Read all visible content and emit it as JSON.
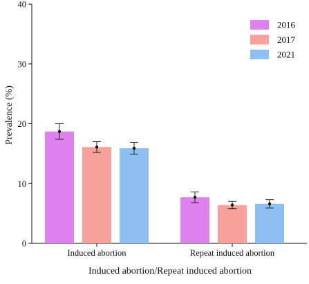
{
  "chart_data": {
    "type": "bar",
    "xlabel": "Induced abortion/Repeat induced abortion",
    "ylabel": "Prevalence (%)",
    "ylim": [
      0,
      40
    ],
    "yticks": [
      0,
      10,
      20,
      30,
      40
    ],
    "categories": [
      "Induced abortion",
      "Repeat induced abortion"
    ],
    "series": [
      {
        "name": "2016",
        "color": "#dd82ee",
        "values": [
          18.7,
          7.7
        ],
        "error": [
          1.3,
          0.9
        ]
      },
      {
        "name": "2017",
        "color": "#f8a09b",
        "values": [
          16.1,
          6.4
        ],
        "error": [
          0.9,
          0.6
        ]
      },
      {
        "name": "2021",
        "color": "#8fbef2",
        "values": [
          15.9,
          6.6
        ],
        "error": [
          1.0,
          0.7
        ]
      }
    ],
    "grid": false,
    "legend_position": "top-right",
    "error_bars": true,
    "mean_markers": true
  }
}
